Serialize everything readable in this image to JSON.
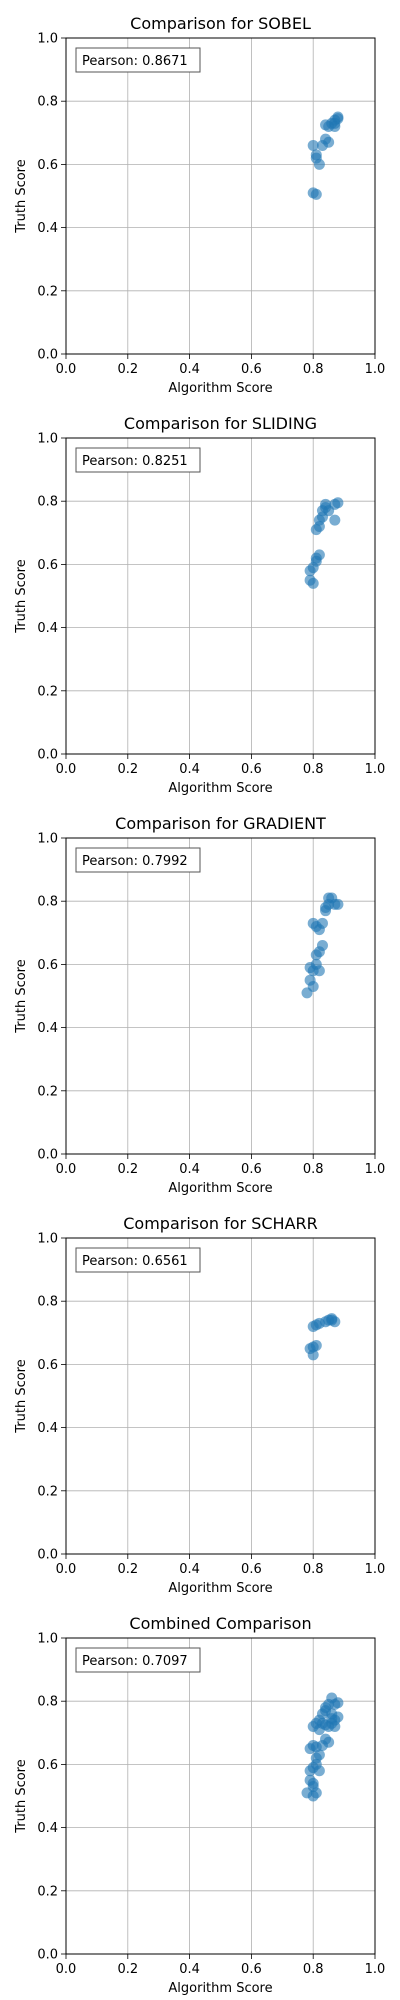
{
  "colors": {
    "point": "#1f77b4"
  },
  "chart_data": [
    {
      "type": "scatter",
      "title": "Comparison for SOBEL",
      "xlabel": "Algorithm Score",
      "ylabel": "Truth Score",
      "xlim": [
        0,
        1
      ],
      "ylim": [
        0,
        1
      ],
      "xticks": [
        "0.0",
        "0.2",
        "0.4",
        "0.6",
        "0.8",
        "1.0"
      ],
      "yticks": [
        "0.0",
        "0.2",
        "0.4",
        "0.6",
        "0.8",
        "1.0"
      ],
      "grid": true,
      "annotation": "Pearson: 0.8671",
      "points": [
        [
          0.8,
          0.51
        ],
        [
          0.81,
          0.505
        ],
        [
          0.8,
          0.66
        ],
        [
          0.81,
          0.63
        ],
        [
          0.81,
          0.62
        ],
        [
          0.82,
          0.6
        ],
        [
          0.83,
          0.66
        ],
        [
          0.84,
          0.68
        ],
        [
          0.85,
          0.67
        ],
        [
          0.84,
          0.725
        ],
        [
          0.85,
          0.72
        ],
        [
          0.86,
          0.73
        ],
        [
          0.87,
          0.73
        ],
        [
          0.87,
          0.74
        ],
        [
          0.88,
          0.75
        ],
        [
          0.88,
          0.745
        ],
        [
          0.87,
          0.72
        ]
      ]
    },
    {
      "type": "scatter",
      "title": "Comparison for SLIDING",
      "xlabel": "Algorithm Score",
      "ylabel": "Truth Score",
      "xlim": [
        0,
        1
      ],
      "ylim": [
        0,
        1
      ],
      "xticks": [
        "0.0",
        "0.2",
        "0.4",
        "0.6",
        "0.8",
        "1.0"
      ],
      "yticks": [
        "0.0",
        "0.2",
        "0.4",
        "0.6",
        "0.8",
        "1.0"
      ],
      "grid": true,
      "annotation": "Pearson: 0.8251",
      "points": [
        [
          0.79,
          0.55
        ],
        [
          0.8,
          0.54
        ],
        [
          0.79,
          0.58
        ],
        [
          0.8,
          0.59
        ],
        [
          0.81,
          0.61
        ],
        [
          0.82,
          0.63
        ],
        [
          0.81,
          0.62
        ],
        [
          0.81,
          0.71
        ],
        [
          0.82,
          0.72
        ],
        [
          0.82,
          0.74
        ],
        [
          0.83,
          0.75
        ],
        [
          0.83,
          0.77
        ],
        [
          0.84,
          0.78
        ],
        [
          0.84,
          0.79
        ],
        [
          0.87,
          0.79
        ],
        [
          0.88,
          0.795
        ],
        [
          0.87,
          0.74
        ],
        [
          0.85,
          0.77
        ]
      ]
    },
    {
      "type": "scatter",
      "title": "Comparison for GRADIENT",
      "xlabel": "Algorithm Score",
      "ylabel": "Truth Score",
      "xlim": [
        0,
        1
      ],
      "ylim": [
        0,
        1
      ],
      "xticks": [
        "0.0",
        "0.2",
        "0.4",
        "0.6",
        "0.8",
        "1.0"
      ],
      "yticks": [
        "0.0",
        "0.2",
        "0.4",
        "0.6",
        "0.8",
        "1.0"
      ],
      "grid": true,
      "annotation": "Pearson: 0.7992",
      "points": [
        [
          0.78,
          0.51
        ],
        [
          0.8,
          0.53
        ],
        [
          0.79,
          0.55
        ],
        [
          0.8,
          0.58
        ],
        [
          0.79,
          0.59
        ],
        [
          0.81,
          0.6
        ],
        [
          0.82,
          0.58
        ],
        [
          0.81,
          0.63
        ],
        [
          0.82,
          0.64
        ],
        [
          0.83,
          0.66
        ],
        [
          0.8,
          0.73
        ],
        [
          0.81,
          0.72
        ],
        [
          0.82,
          0.71
        ],
        [
          0.83,
          0.73
        ],
        [
          0.84,
          0.77
        ],
        [
          0.84,
          0.78
        ],
        [
          0.85,
          0.79
        ],
        [
          0.86,
          0.81
        ],
        [
          0.87,
          0.79
        ],
        [
          0.88,
          0.79
        ],
        [
          0.85,
          0.81
        ]
      ]
    },
    {
      "type": "scatter",
      "title": "Comparison for SCHARR",
      "xlabel": "Algorithm Score",
      "ylabel": "Truth Score",
      "xlim": [
        0,
        1
      ],
      "ylim": [
        0,
        1
      ],
      "xticks": [
        "0.0",
        "0.2",
        "0.4",
        "0.6",
        "0.8",
        "1.0"
      ],
      "yticks": [
        "0.0",
        "0.2",
        "0.4",
        "0.6",
        "0.8",
        "1.0"
      ],
      "grid": true,
      "annotation": "Pearson: 0.6561",
      "points": [
        [
          0.79,
          0.65
        ],
        [
          0.8,
          0.655
        ],
        [
          0.81,
          0.66
        ],
        [
          0.8,
          0.63
        ],
        [
          0.8,
          0.72
        ],
        [
          0.81,
          0.725
        ],
        [
          0.82,
          0.73
        ],
        [
          0.84,
          0.735
        ],
        [
          0.85,
          0.74
        ],
        [
          0.86,
          0.74
        ],
        [
          0.87,
          0.735
        ],
        [
          0.86,
          0.745
        ]
      ]
    },
    {
      "type": "scatter",
      "title": "Combined Comparison",
      "xlabel": "Algorithm Score",
      "ylabel": "Truth Score",
      "xlim": [
        0,
        1
      ],
      "ylim": [
        0,
        1
      ],
      "xticks": [
        "0.0",
        "0.2",
        "0.4",
        "0.6",
        "0.8",
        "1.0"
      ],
      "yticks": [
        "0.0",
        "0.2",
        "0.4",
        "0.6",
        "0.8",
        "1.0"
      ],
      "grid": true,
      "annotation": "Pearson: 0.7097",
      "points": [
        [
          0.78,
          0.51
        ],
        [
          0.8,
          0.5
        ],
        [
          0.81,
          0.51
        ],
        [
          0.8,
          0.53
        ],
        [
          0.79,
          0.55
        ],
        [
          0.8,
          0.54
        ],
        [
          0.79,
          0.58
        ],
        [
          0.8,
          0.59
        ],
        [
          0.81,
          0.6
        ],
        [
          0.82,
          0.58
        ],
        [
          0.81,
          0.62
        ],
        [
          0.82,
          0.63
        ],
        [
          0.79,
          0.65
        ],
        [
          0.8,
          0.66
        ],
        [
          0.81,
          0.655
        ],
        [
          0.83,
          0.66
        ],
        [
          0.84,
          0.68
        ],
        [
          0.85,
          0.67
        ],
        [
          0.8,
          0.72
        ],
        [
          0.81,
          0.73
        ],
        [
          0.82,
          0.71
        ],
        [
          0.83,
          0.73
        ],
        [
          0.84,
          0.725
        ],
        [
          0.85,
          0.72
        ],
        [
          0.86,
          0.73
        ],
        [
          0.87,
          0.74
        ],
        [
          0.88,
          0.75
        ],
        [
          0.86,
          0.745
        ],
        [
          0.84,
          0.77
        ],
        [
          0.84,
          0.78
        ],
        [
          0.85,
          0.79
        ],
        [
          0.86,
          0.81
        ],
        [
          0.87,
          0.79
        ],
        [
          0.88,
          0.795
        ],
        [
          0.83,
          0.76
        ],
        [
          0.82,
          0.74
        ],
        [
          0.86,
          0.76
        ],
        [
          0.87,
          0.72
        ]
      ]
    }
  ]
}
